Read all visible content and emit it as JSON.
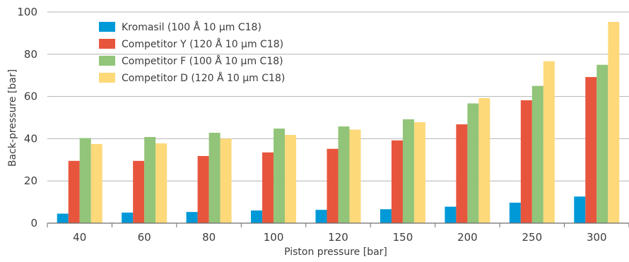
{
  "chart_data": {
    "type": "bar",
    "title": "",
    "xlabel": "Piston pressure [bar]",
    "ylabel": "Back-pressure [bar]",
    "ylim": [
      0,
      100
    ],
    "yticks": [
      0,
      20,
      40,
      60,
      80,
      100
    ],
    "grid": "horizontal",
    "legend_position": "top-left",
    "categories": [
      "40",
      "60",
      "80",
      "100",
      "120",
      "150",
      "200",
      "250",
      "300"
    ],
    "series": [
      {
        "name": "Kromasil (100 Å 10 µm C18)",
        "color": "#0099d8",
        "values": [
          4.5,
          5,
          5.3,
          6,
          6.3,
          6.6,
          7.8,
          9.7,
          12.6
        ]
      },
      {
        "name": "Competitor Y (120 Å 10 µm C18)",
        "color": "#e8553d",
        "values": [
          29.5,
          29.5,
          31.8,
          33.5,
          35.2,
          39.2,
          46.8,
          58.2,
          69.2
        ]
      },
      {
        "name": "Competitor F (100 Å 10 µm C18)",
        "color": "#92c47a",
        "values": [
          40.3,
          40.8,
          42.8,
          44.8,
          45.8,
          49.2,
          56.7,
          65,
          75
        ]
      },
      {
        "name": "Competitor D (120 Å 10 µm C18)",
        "color": "#fdd97a",
        "values": [
          37.5,
          37.8,
          40,
          41.8,
          44.3,
          47.8,
          59.2,
          76.7,
          95.3
        ]
      }
    ]
  }
}
